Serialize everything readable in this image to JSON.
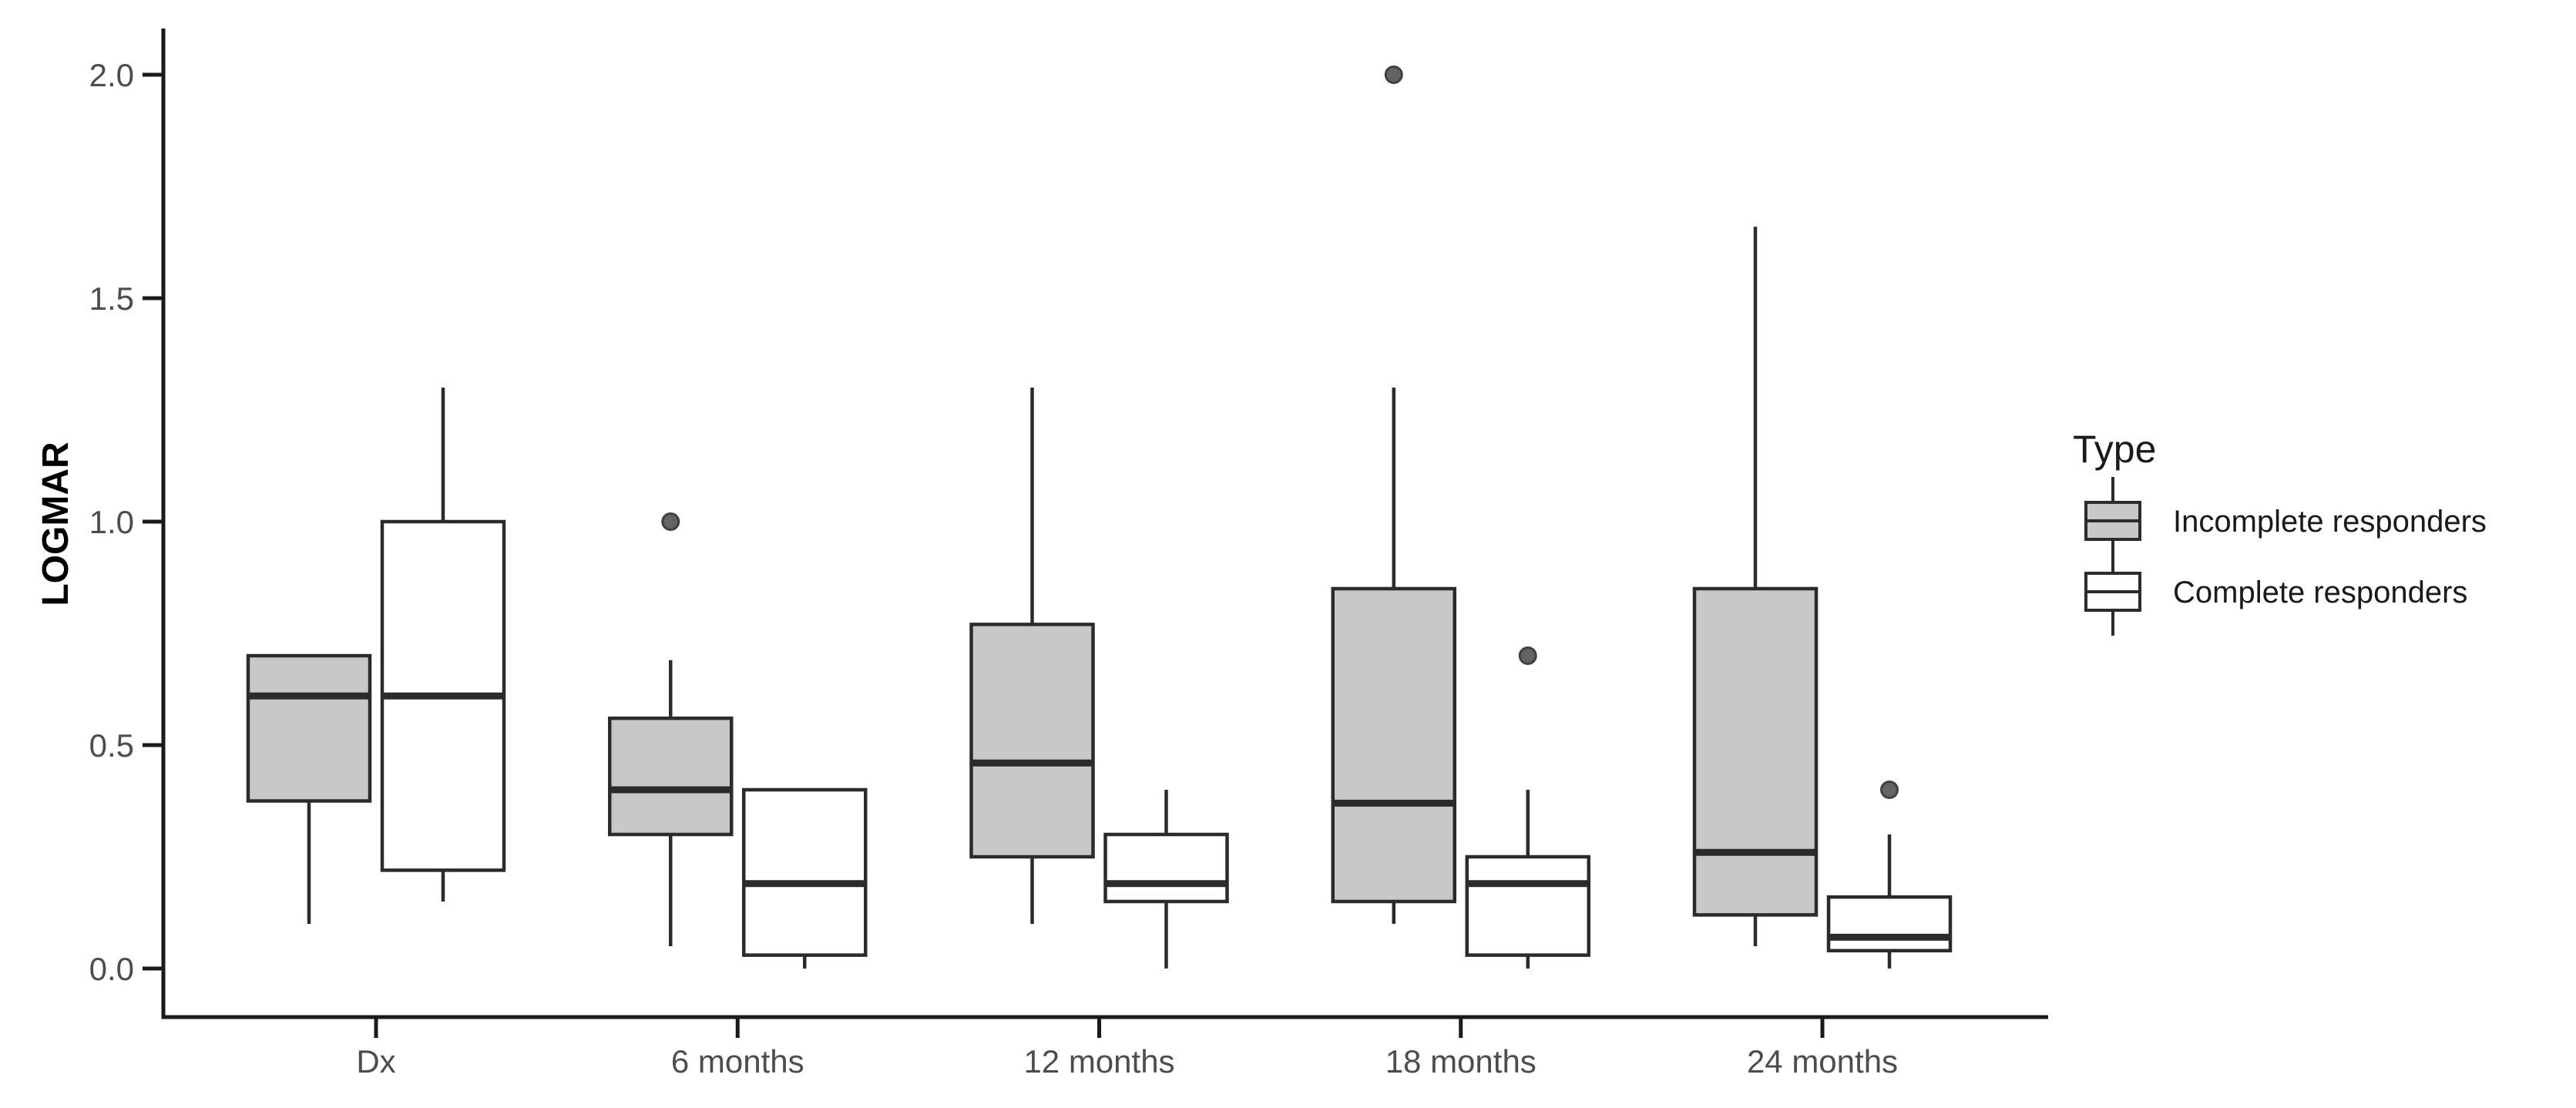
{
  "chart_data": {
    "type": "boxplot",
    "title": "",
    "xlabel": "",
    "ylabel": "LOGMAR",
    "ylim": [
      -0.11,
      2.1
    ],
    "yticks": [
      0.0,
      0.5,
      1.0,
      1.5,
      2.0
    ],
    "ytick_labels": [
      "0.0",
      "0.5",
      "1.0",
      "1.5",
      "2.0"
    ],
    "categories": [
      "Dx",
      "6 months",
      "12 months",
      "18 months",
      "24 months"
    ],
    "grid": "off",
    "legend": {
      "title": "Type",
      "position": "right",
      "entries": [
        {
          "label": "Incomplete responders",
          "fill": "#c8c8c8"
        },
        {
          "label": "Complete responders",
          "fill": "#ffffff"
        }
      ]
    },
    "series": [
      {
        "name": "Incomplete responders",
        "fill": "#c8c8c8",
        "boxes": [
          {
            "category": "Dx",
            "whisker_low": 0.1,
            "q1": 0.375,
            "median": 0.61,
            "q3": 0.7,
            "whisker_high": 0.7,
            "outliers": []
          },
          {
            "category": "6 months",
            "whisker_low": 0.05,
            "q1": 0.3,
            "median": 0.4,
            "q3": 0.56,
            "whisker_high": 0.69,
            "outliers": [
              1.0
            ]
          },
          {
            "category": "12 months",
            "whisker_low": 0.1,
            "q1": 0.25,
            "median": 0.46,
            "q3": 0.77,
            "whisker_high": 1.3,
            "outliers": []
          },
          {
            "category": "18 months",
            "whisker_low": 0.1,
            "q1": 0.15,
            "median": 0.37,
            "q3": 0.85,
            "whisker_high": 1.3,
            "outliers": [
              2.0
            ]
          },
          {
            "category": "24 months",
            "whisker_low": 0.05,
            "q1": 0.12,
            "median": 0.26,
            "q3": 0.85,
            "whisker_high": 1.66,
            "outliers": []
          }
        ]
      },
      {
        "name": "Complete responders",
        "fill": "#ffffff",
        "boxes": [
          {
            "category": "Dx",
            "whisker_low": 0.15,
            "q1": 0.22,
            "median": 0.61,
            "q3": 1.0,
            "whisker_high": 1.3,
            "outliers": []
          },
          {
            "category": "6 months",
            "whisker_low": 0.0,
            "q1": 0.03,
            "median": 0.19,
            "q3": 0.4,
            "whisker_high": 0.4,
            "outliers": []
          },
          {
            "category": "12 months",
            "whisker_low": 0.0,
            "q1": 0.15,
            "median": 0.19,
            "q3": 0.3,
            "whisker_high": 0.4,
            "outliers": []
          },
          {
            "category": "18 months",
            "whisker_low": 0.0,
            "q1": 0.03,
            "median": 0.19,
            "q3": 0.25,
            "whisker_high": 0.4,
            "outliers": [
              0.7
            ]
          },
          {
            "category": "24 months",
            "whisker_low": 0.0,
            "q1": 0.04,
            "median": 0.07,
            "q3": 0.16,
            "whisker_high": 0.3,
            "outliers": [
              0.4
            ]
          }
        ]
      }
    ],
    "colors": {
      "incomplete_fill": "#c8c8c8",
      "complete_fill": "#ffffff",
      "box_stroke": "#2b2b2b",
      "median_stroke": "#2b2b2b",
      "whisker_stroke": "#2b2b2b",
      "outlier_fill": "#636363",
      "outlier_stroke": "#404040",
      "axis_color": "#1a1a1a",
      "tick_label_color": "#4d4d4d",
      "text_color": "#1a1a1a",
      "background": "#ffffff"
    }
  }
}
